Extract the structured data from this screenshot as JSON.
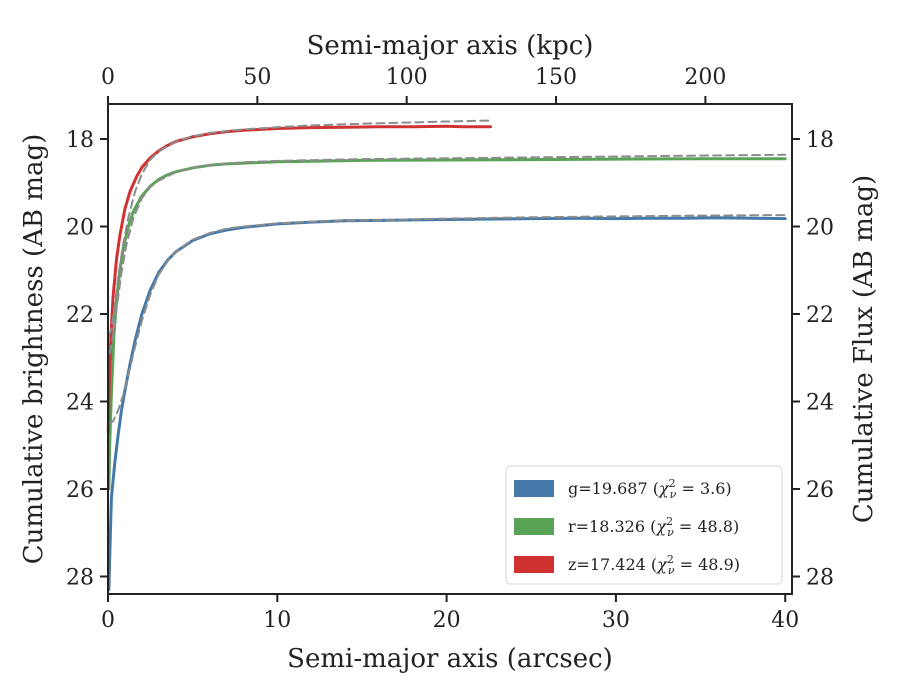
{
  "chart_data": {
    "type": "line",
    "title": "",
    "xlabel": "Semi-major axis (arcsec)",
    "ylabel": "Cumulative brightness (AB mag)",
    "x2label": "Semi-major axis (kpc)",
    "y2label": "Cumulative Flux (AB mag)",
    "xlim": [
      0,
      40.4
    ],
    "ylim": [
      28.4,
      17.2
    ],
    "x2lim": [
      0,
      229
    ],
    "y_inverted": true,
    "xticks": [
      0,
      10,
      20,
      30,
      40
    ],
    "yticks": [
      18,
      20,
      22,
      24,
      26,
      28
    ],
    "x2ticks": [
      0,
      50,
      100,
      150,
      200
    ],
    "grid": false,
    "legend_position": "lower-right",
    "legend": [
      {
        "label": "g=19.687 ($\\chi^2_\\nu = 3.6$)",
        "prefix": "g=19.687 (",
        "chi": "χ",
        "sup": "2",
        "sub": "ν",
        "suffix": " = 3.6)",
        "color": "#4479a9"
      },
      {
        "label": "r=18.326 ($\\chi^2_\\nu = 48.8$)",
        "prefix": "r=18.326 (",
        "chi": "χ",
        "sup": "2",
        "sub": "ν",
        "suffix": " = 48.8)",
        "color": "#59a357"
      },
      {
        "label": "z=17.424 ($\\chi^2_\\nu = 48.9$)",
        "prefix": "z=17.424 (",
        "chi": "χ",
        "sup": "2",
        "sub": "ν",
        "suffix": " = 48.9)",
        "color": "#d03232"
      }
    ],
    "series": [
      {
        "name": "g=19.687",
        "color": "#4479a9",
        "kind": "data",
        "x": [
          0.05,
          0.2,
          0.4,
          0.6,
          0.8,
          1.0,
          1.3,
          1.6,
          2.0,
          2.5,
          3.0,
          3.5,
          4.0,
          5.0,
          6.0,
          7.0,
          8.0,
          9.0,
          10.0,
          12.0,
          14.0,
          16.0,
          18.0,
          20.0,
          22.0,
          25.0,
          28.0,
          30.0,
          32.0,
          34.0,
          36.0,
          38.0,
          40.0
        ],
        "y": [
          28.3,
          26.2,
          25.4,
          24.75,
          24.2,
          23.75,
          23.15,
          22.6,
          22.0,
          21.45,
          21.05,
          20.78,
          20.58,
          20.32,
          20.17,
          20.08,
          20.02,
          19.98,
          19.94,
          19.9,
          19.87,
          19.86,
          19.85,
          19.84,
          19.83,
          19.82,
          19.81,
          19.82,
          19.81,
          19.81,
          19.8,
          19.81,
          19.82
        ]
      },
      {
        "name": "g=19.687 model",
        "color": "#8c8c8c",
        "kind": "model",
        "x": [
          0.1,
          0.3,
          0.6,
          0.9,
          1.2,
          1.6,
          2.0,
          2.5,
          3.0,
          3.5,
          4.0,
          5.0,
          6.0,
          7.0,
          8.0,
          10.0,
          12.0,
          15.0,
          20.0,
          25.0,
          30.0,
          35.0,
          40.0
        ],
        "y": [
          24.5,
          24.45,
          24.2,
          23.85,
          23.4,
          22.75,
          22.15,
          21.55,
          21.1,
          20.8,
          20.58,
          20.3,
          20.15,
          20.05,
          20.0,
          19.93,
          19.89,
          19.86,
          19.82,
          19.79,
          19.77,
          19.75,
          19.74
        ]
      },
      {
        "name": "r=18.326",
        "color": "#59a357",
        "kind": "data",
        "x": [
          0.05,
          0.1,
          0.2,
          0.35,
          0.5,
          0.7,
          0.9,
          1.2,
          1.5,
          2.0,
          2.5,
          3.0,
          3.5,
          4.0,
          5.0,
          6.0,
          7.0,
          8.0,
          10.0,
          12.0,
          15.0,
          20.0,
          25.0,
          30.0,
          35.0,
          40.0
        ],
        "y": [
          26.0,
          25.0,
          23.8,
          22.5,
          21.7,
          21.0,
          20.5,
          20.0,
          19.65,
          19.3,
          19.08,
          18.92,
          18.82,
          18.75,
          18.66,
          18.6,
          18.57,
          18.55,
          18.52,
          18.51,
          18.49,
          18.48,
          18.47,
          18.46,
          18.45,
          18.45
        ]
      },
      {
        "name": "r=18.326 model",
        "color": "#8c8c8c",
        "kind": "model",
        "x": [
          0.1,
          0.3,
          0.5,
          0.8,
          1.1,
          1.5,
          2.0,
          2.5,
          3.0,
          4.0,
          5.0,
          6.0,
          8.0,
          10.0,
          15.0,
          20.0,
          25.0,
          30.0,
          35.0,
          40.0
        ],
        "y": [
          22.9,
          22.5,
          21.9,
          21.05,
          20.4,
          19.8,
          19.35,
          19.1,
          18.95,
          18.76,
          18.66,
          18.6,
          18.53,
          18.5,
          18.46,
          18.44,
          18.42,
          18.4,
          18.38,
          18.36
        ]
      },
      {
        "name": "z=17.424",
        "color": "#d03232",
        "kind": "data",
        "x": [
          0.02,
          0.05,
          0.1,
          0.2,
          0.3,
          0.5,
          0.7,
          1.0,
          1.3,
          1.7,
          2.0,
          2.5,
          3.0,
          3.5,
          4.0,
          5.0,
          6.0,
          7.0,
          8.0,
          10.0,
          12.0,
          14.0,
          16.0,
          18.0,
          20.0,
          21.0,
          22.6
        ],
        "y": [
          24.7,
          24.0,
          23.2,
          22.3,
          21.6,
          20.75,
          20.2,
          19.6,
          19.2,
          18.85,
          18.65,
          18.43,
          18.27,
          18.15,
          18.06,
          17.95,
          17.88,
          17.83,
          17.8,
          17.76,
          17.74,
          17.73,
          17.72,
          17.72,
          17.71,
          17.72,
          17.72
        ]
      },
      {
        "name": "z=17.424 model",
        "color": "#8c8c8c",
        "kind": "model",
        "x": [
          0.05,
          0.2,
          0.4,
          0.6,
          0.9,
          1.2,
          1.6,
          2.0,
          2.5,
          3.0,
          4.0,
          5.0,
          6.0,
          8.0,
          10.0,
          12.0,
          15.0,
          18.0,
          20.0,
          22.6
        ],
        "y": [
          22.5,
          22.35,
          21.8,
          21.15,
          20.4,
          19.8,
          19.2,
          18.8,
          18.47,
          18.28,
          18.06,
          17.94,
          17.86,
          17.78,
          17.73,
          17.69,
          17.65,
          17.62,
          17.6,
          17.58
        ]
      }
    ]
  }
}
